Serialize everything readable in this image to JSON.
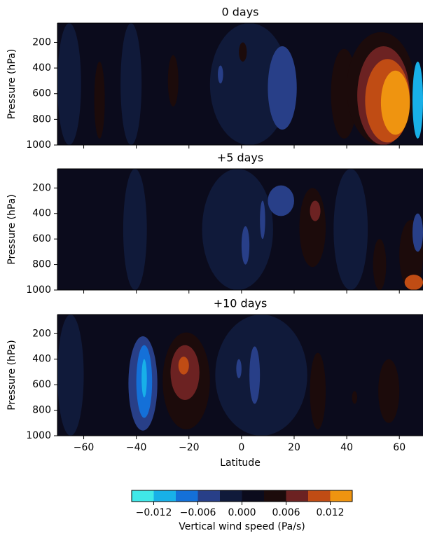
{
  "chart_data": [
    {
      "type": "contour",
      "title": "0 days",
      "ylabel": "Pressure (hPa)",
      "xlim": [
        -70,
        69
      ],
      "ylim": [
        1000,
        50
      ],
      "yticks": [
        200,
        400,
        600,
        800,
        1000
      ],
      "xticks": [
        -60,
        -40,
        -20,
        0,
        20,
        40,
        60
      ],
      "regions": [
        {
          "lat": [
            -70,
            69
          ],
          "p": [
            50,
            1000
          ],
          "value": 0.0015
        },
        {
          "lat": [
            -70,
            -61
          ],
          "p": [
            50,
            1000
          ],
          "value": -0.0015
        },
        {
          "lat": [
            -46,
            -38
          ],
          "p": [
            50,
            1000
          ],
          "value": -0.0015
        },
        {
          "lat": [
            -12,
            18
          ],
          "p": [
            50,
            1000
          ],
          "value": -0.0015
        },
        {
          "lat": [
            -56,
            -52
          ],
          "p": [
            350,
            950
          ],
          "value": 0.0045
        },
        {
          "lat": [
            -28,
            -24
          ],
          "p": [
            300,
            700
          ],
          "value": 0.0045
        },
        {
          "lat": [
            -1,
            2
          ],
          "p": [
            200,
            350
          ],
          "value": 0.0045
        },
        {
          "lat": [
            34,
            44
          ],
          "p": [
            250,
            950
          ],
          "value": 0.0045
        },
        {
          "lat": [
            40,
            66
          ],
          "p": [
            120,
            1000
          ],
          "value": 0.0045
        },
        {
          "lat": [
            44,
            64
          ],
          "p": [
            230,
            1000
          ],
          "value": 0.0075
        },
        {
          "lat": [
            47,
            64
          ],
          "p": [
            330,
            980
          ],
          "value": 0.0105
        },
        {
          "lat": [
            53,
            64
          ],
          "p": [
            420,
            920
          ],
          "value": 0.0135
        },
        {
          "lat": [
            -9,
            -7
          ],
          "p": [
            380,
            520
          ],
          "value": -0.0045
        },
        {
          "lat": [
            10,
            21
          ],
          "p": [
            230,
            880
          ],
          "value": -0.0045
        },
        {
          "lat": [
            65,
            69
          ],
          "p": [
            350,
            950
          ],
          "value": -0.0105
        }
      ]
    },
    {
      "type": "contour",
      "title": "+5 days",
      "ylabel": "Pressure (hPa)",
      "xlim": [
        -70,
        69
      ],
      "ylim": [
        1000,
        50
      ],
      "yticks": [
        200,
        400,
        600,
        800,
        1000
      ],
      "xticks": [
        -60,
        -40,
        -20,
        0,
        20,
        40,
        60
      ],
      "regions": [
        {
          "lat": [
            -70,
            69
          ],
          "p": [
            50,
            1000
          ],
          "value": 0.0015
        },
        {
          "lat": [
            -45,
            -36
          ],
          "p": [
            50,
            1000
          ],
          "value": -0.0015
        },
        {
          "lat": [
            -15,
            12
          ],
          "p": [
            50,
            1000
          ],
          "value": -0.0015
        },
        {
          "lat": [
            35,
            48
          ],
          "p": [
            50,
            1000
          ],
          "value": -0.0015
        },
        {
          "lat": [
            22,
            32
          ],
          "p": [
            200,
            820
          ],
          "value": 0.0045
        },
        {
          "lat": [
            26,
            30
          ],
          "p": [
            300,
            460
          ],
          "value": 0.0075
        },
        {
          "lat": [
            50,
            55
          ],
          "p": [
            600,
            1000
          ],
          "value": 0.0045
        },
        {
          "lat": [
            60,
            69
          ],
          "p": [
            450,
            1000
          ],
          "value": 0.0045
        },
        {
          "lat": [
            62,
            69
          ],
          "p": [
            880,
            1000
          ],
          "value": 0.0105
        },
        {
          "lat": [
            10,
            20
          ],
          "p": [
            180,
            420
          ],
          "value": -0.0045
        },
        {
          "lat": [
            7,
            9
          ],
          "p": [
            300,
            600
          ],
          "value": -0.0045
        },
        {
          "lat": [
            0,
            3
          ],
          "p": [
            500,
            800
          ],
          "value": -0.0045
        },
        {
          "lat": [
            65,
            69
          ],
          "p": [
            400,
            700
          ],
          "value": -0.0045
        }
      ]
    },
    {
      "type": "contour",
      "title": "+10 days",
      "ylabel": "Pressure (hPa)",
      "xlim": [
        -70,
        69
      ],
      "ylim": [
        1000,
        50
      ],
      "yticks": [
        200,
        400,
        600,
        800,
        1000
      ],
      "xticks": [
        {
          "value": -60,
          "label": "−60"
        },
        {
          "value": -40,
          "label": "−40"
        },
        {
          "value": -20,
          "label": "−20"
        },
        0,
        20,
        40,
        60
      ],
      "xlabel": "Latitude",
      "regions": [
        {
          "lat": [
            -70,
            69
          ],
          "p": [
            50,
            1000
          ],
          "value": 0.0015
        },
        {
          "lat": [
            -70,
            -60
          ],
          "p": [
            50,
            1000
          ],
          "value": -0.0015
        },
        {
          "lat": [
            -10,
            25
          ],
          "p": [
            50,
            1000
          ],
          "value": -0.0015
        },
        {
          "lat": [
            -43,
            -32
          ],
          "p": [
            220,
            960
          ],
          "value": -0.0045
        },
        {
          "lat": [
            -40,
            -34
          ],
          "p": [
            290,
            860
          ],
          "value": -0.0075
        },
        {
          "lat": [
            -38,
            -36
          ],
          "p": [
            400,
            700
          ],
          "value": -0.0105
        },
        {
          "lat": [
            -30,
            -12
          ],
          "p": [
            190,
            950
          ],
          "value": 0.0045
        },
        {
          "lat": [
            -27,
            -16
          ],
          "p": [
            290,
            720
          ],
          "value": 0.0075
        },
        {
          "lat": [
            -24,
            -20
          ],
          "p": [
            380,
            520
          ],
          "value": 0.0105
        },
        {
          "lat": [
            3,
            7
          ],
          "p": [
            300,
            750
          ],
          "value": -0.0045
        },
        {
          "lat": [
            -2,
            0
          ],
          "p": [
            400,
            550
          ],
          "value": -0.0045
        },
        {
          "lat": [
            26,
            32
          ],
          "p": [
            350,
            950
          ],
          "value": 0.0045
        },
        {
          "lat": [
            52,
            60
          ],
          "p": [
            400,
            900
          ],
          "value": 0.0045
        },
        {
          "lat": [
            42,
            44
          ],
          "p": [
            650,
            750
          ],
          "value": 0.0045
        }
      ]
    },
    {
      "type": "colorbar",
      "label": "Vertical wind speed (Pa/s)",
      "levels": [
        -0.015,
        -0.012,
        -0.009,
        -0.006,
        -0.003,
        0,
        0.003,
        0.006,
        0.009,
        0.012,
        0.015
      ],
      "colors": [
        "#40e8e8",
        "#18b0e8",
        "#1470d8",
        "#283f88",
        "#101a3a",
        "#0b0b1c",
        "#1c0b0b",
        "#6c2222",
        "#c04c14",
        "#ef9410",
        "#f8d028"
      ],
      "ticks": [
        {
          "value": -0.012,
          "label": "−0.012"
        },
        {
          "value": -0.006,
          "label": "−0.006"
        },
        {
          "value": 0,
          "label": "0.000"
        },
        0.006,
        0.012
      ]
    }
  ]
}
